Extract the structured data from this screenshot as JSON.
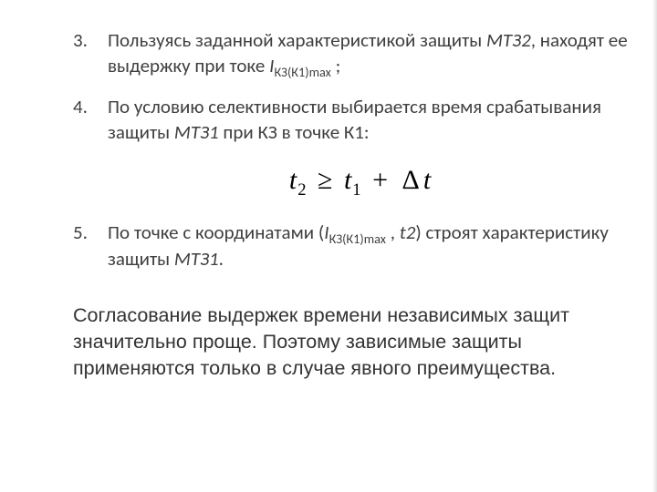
{
  "text_color": "#3f3f3f",
  "summary_color": "#333333",
  "background_color": "#ffffff",
  "body_fontsize": 21,
  "summary_fontsize": 21.5,
  "formula_fontsize": 30,
  "items": {
    "n3": "3.",
    "t3a": "   Пользуясь заданной характеристикой защиты ",
    "t3b": "МТЗ2",
    "t3c": ", находят ее выдержку  при токе  ",
    "t3d": "I",
    "t3e": "КЗ(К1)max",
    "t3f": " ;",
    "n4": "4.",
    "t4a": "   По условию селективности выбирается время срабатывания защиты ",
    "t4b": "МТЗ1",
    "t4c": " при КЗ в точке К1:",
    "n5": "5.",
    "t5a": "   По точке с координатами (",
    "t5b": "I",
    "t5c": "КЗ(К1)max",
    "t5d": " , ",
    "t5e": "t2",
    "t5f": ") строят характеристику защиты ",
    "t5g": "МТЗ1",
    "t5h": "."
  },
  "formula": {
    "t": "t",
    "s2": "2",
    "ge": "≥",
    "s1": "1",
    "plus": "+",
    "delta": "Δ",
    "tvar": "t"
  },
  "summary": "Согласование выдержек времени независимых защит значительно проще. Поэтому зависимые защиты применяются только в случае явного преимущества."
}
